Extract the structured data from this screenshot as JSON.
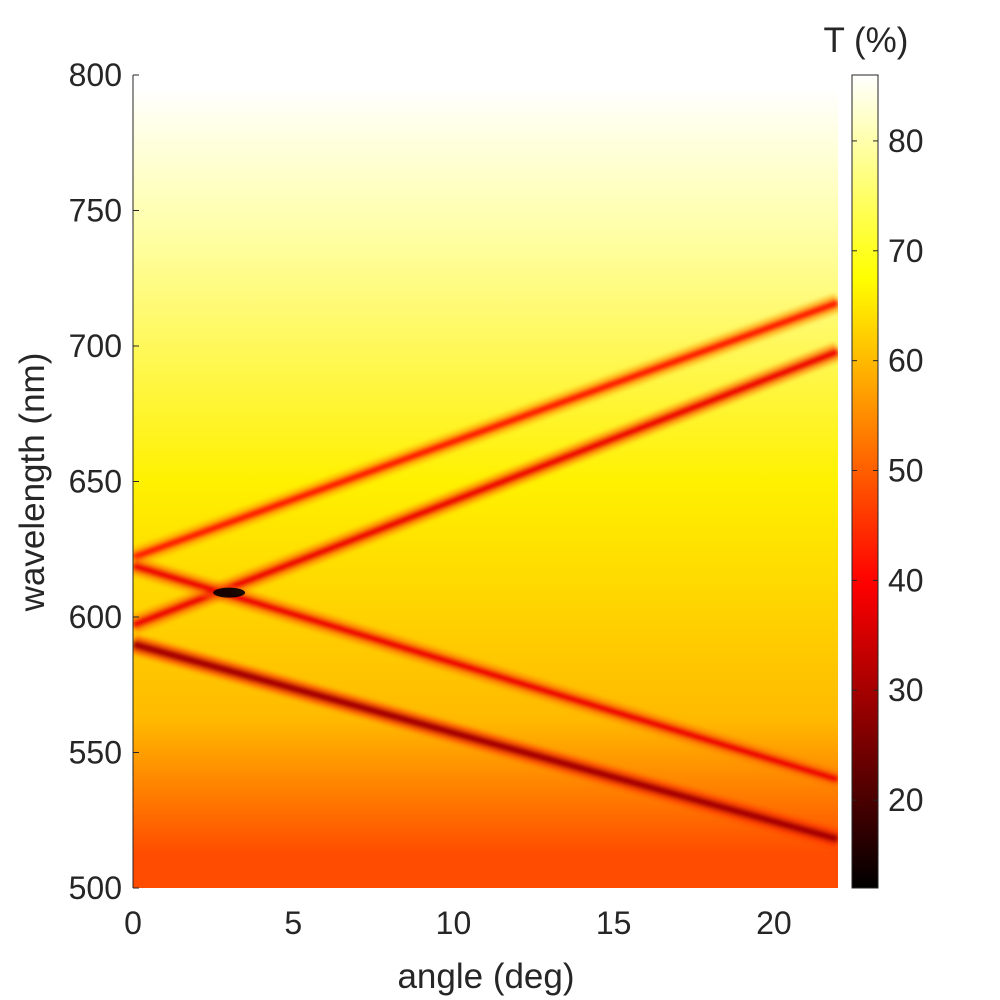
{
  "chart_data": {
    "type": "heatmap",
    "title": "",
    "xlabel": "angle (deg)",
    "ylabel": "wavelength (nm)",
    "xlim": [
      0,
      22
    ],
    "ylim": [
      500,
      800
    ],
    "x_ticks": [
      "0",
      "5",
      "10",
      "15",
      "20"
    ],
    "y_ticks": [
      "500",
      "550",
      "600",
      "650",
      "700",
      "750",
      "800"
    ],
    "colorbar": {
      "label": "T (%)",
      "range": [
        12,
        86
      ],
      "ticks": [
        "20",
        "30",
        "40",
        "50",
        "60",
        "70",
        "80"
      ],
      "colormap": "hot",
      "colors": [
        "#000000",
        "#ff0000",
        "#ffff00",
        "#ffffff"
      ]
    },
    "background_regions": [
      {
        "wavelength_range": [
          790,
          800
        ],
        "T_percent": 86
      },
      {
        "wavelength_range": [
          700,
          790
        ],
        "T_percent": 80
      },
      {
        "wavelength_range": [
          600,
          700
        ],
        "T_percent": 66
      },
      {
        "wavelength_range": [
          525,
          600
        ],
        "T_percent": 60
      },
      {
        "wavelength_range": [
          500,
          525
        ],
        "T_percent": 48
      }
    ],
    "resonance_bands": [
      {
        "name": "",
        "start": {
          "angle": 0,
          "wavelength": 622
        },
        "end": {
          "angle": 22,
          "wavelength": 716
        },
        "min_T_percent": 42
      },
      {
        "name": "",
        "start": {
          "angle": 0,
          "wavelength": 597
        },
        "end": {
          "angle": 22,
          "wavelength": 698
        },
        "min_T_percent": 38
      },
      {
        "name": "",
        "start": {
          "angle": 0,
          "wavelength": 619
        },
        "end": {
          "angle": 22,
          "wavelength": 540
        },
        "min_T_percent": 38
      },
      {
        "name": "",
        "start": {
          "angle": 0,
          "wavelength": 590
        },
        "end": {
          "angle": 22,
          "wavelength": 518
        },
        "min_T_percent": 30
      }
    ],
    "minimum": {
      "angle": 3,
      "wavelength": 609,
      "T_percent": 12
    }
  }
}
